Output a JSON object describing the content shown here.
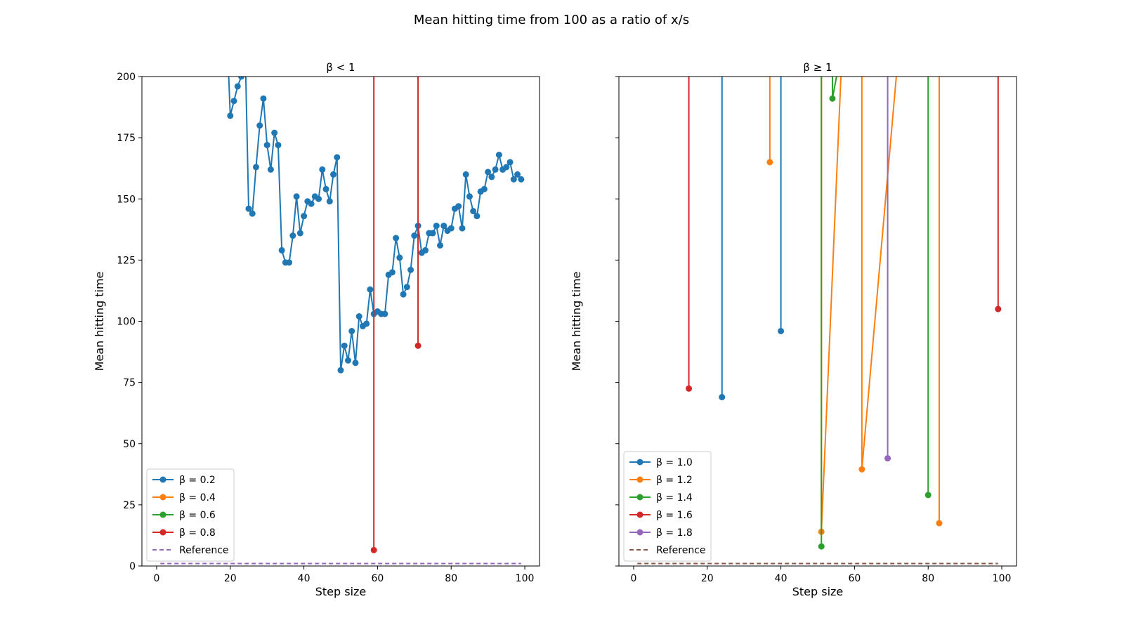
{
  "figure": {
    "title": "Mean hitting time from 100 as a ratio of x/s"
  },
  "colors": {
    "blue": "#1f77b4",
    "orange": "#ff7f0e",
    "green": "#2ca02c",
    "red": "#d62728",
    "purple": "#9467bd",
    "brown": "#8c564b"
  },
  "chart_data": [
    {
      "type": "line",
      "title": "β < 1",
      "xlabel": "Step size",
      "ylabel": "Mean hitting time",
      "xlim": [
        -4,
        104
      ],
      "ylim": [
        0,
        200
      ],
      "xticks": [
        0,
        20,
        40,
        60,
        80,
        100
      ],
      "yticks": [
        0,
        25,
        50,
        75,
        100,
        125,
        150,
        175,
        200
      ],
      "grid": false,
      "legend_position": "lower-left",
      "series": [
        {
          "name": "β = 0.2",
          "color": "blue",
          "markers": true,
          "x": [
            18,
            20,
            21,
            22,
            23,
            24,
            25,
            26,
            27,
            28,
            29,
            30,
            31,
            32,
            33,
            34,
            35,
            36,
            37,
            38,
            39,
            40,
            41,
            42,
            43,
            44,
            45,
            46,
            47,
            48,
            49,
            50,
            51,
            52,
            53,
            54,
            55,
            56,
            57,
            58,
            59,
            60,
            61,
            62,
            63,
            64,
            65,
            66,
            67,
            68,
            69,
            70,
            71,
            72,
            73,
            74,
            75,
            76,
            77,
            78,
            79,
            80,
            81,
            82,
            83,
            84,
            85,
            86,
            87,
            88,
            89,
            90,
            91,
            92,
            93,
            94,
            95,
            96,
            97,
            98,
            99
          ],
          "y": [
            260,
            184,
            190,
            196,
            200,
            215,
            146,
            144,
            163,
            180,
            191,
            172,
            162,
            177,
            172,
            129,
            124,
            124,
            135,
            151,
            136,
            143,
            149,
            148,
            151,
            150,
            162,
            154,
            149,
            160,
            167,
            80,
            90,
            84,
            96,
            83,
            102,
            98,
            99,
            113,
            103,
            104,
            103,
            103,
            119,
            120,
            134,
            126,
            111,
            114,
            121,
            135,
            139,
            128,
            129,
            136,
            136,
            139,
            131,
            139,
            137,
            138,
            146,
            147,
            138,
            160,
            151,
            145,
            143,
            153,
            154,
            161,
            159,
            162,
            168,
            162,
            163,
            165,
            158,
            160,
            158
          ]
        },
        {
          "name": "β = 0.4",
          "color": "orange",
          "markers": true,
          "x": [],
          "y": []
        },
        {
          "name": "β = 0.6",
          "color": "green",
          "markers": true,
          "x": [],
          "y": []
        },
        {
          "name": "β = 0.8",
          "color": "red",
          "markers": true,
          "x": [
            59,
            59,
            71,
            71
          ],
          "y": [
            6.5,
            400,
            400,
            90
          ]
        },
        {
          "name": "Reference",
          "color": "purple",
          "dashed": true,
          "markers": false,
          "x": [
            1,
            99
          ],
          "y": [
            1,
            1
          ]
        }
      ]
    },
    {
      "type": "line",
      "title": "β ≥ 1",
      "xlabel": "Step size",
      "ylabel": "Mean hitting time",
      "xlim": [
        -4,
        104
      ],
      "ylim": [
        0,
        200
      ],
      "xticks": [
        0,
        20,
        40,
        60,
        80,
        100
      ],
      "yticks": [
        0,
        25,
        50,
        75,
        100,
        125,
        150,
        175,
        200
      ],
      "show_ytick_labels": false,
      "grid": false,
      "legend_position": "lower-left",
      "series": [
        {
          "name": "β = 1.0",
          "color": "blue",
          "markers": true,
          "x": [
            24,
            24,
            40,
            40
          ],
          "y": [
            69,
            400,
            400,
            96
          ]
        },
        {
          "name": "β = 1.2",
          "color": "orange",
          "markers": true,
          "x": [
            37,
            37,
            51,
            51,
            62,
            62,
            83,
            83
          ],
          "y": [
            165,
            400,
            400,
            14,
            400,
            39.5,
            400,
            17.5
          ]
        },
        {
          "name": "β = 1.4",
          "color": "green",
          "markers": true,
          "x": [
            51,
            51,
            54,
            54,
            80,
            80
          ],
          "y": [
            8,
            400,
            400,
            191,
            400,
            29
          ]
        },
        {
          "name": "β = 1.6",
          "color": "red",
          "markers": true,
          "x": [
            15,
            15,
            99,
            99
          ],
          "y": [
            72.5,
            400,
            400,
            105
          ]
        },
        {
          "name": "β = 1.8",
          "color": "purple",
          "markers": true,
          "x": [
            69,
            69
          ],
          "y": [
            400,
            44
          ]
        },
        {
          "name": "Reference",
          "color": "brown",
          "dashed": true,
          "markers": false,
          "x": [
            1,
            99
          ],
          "y": [
            1,
            1
          ]
        }
      ]
    }
  ]
}
